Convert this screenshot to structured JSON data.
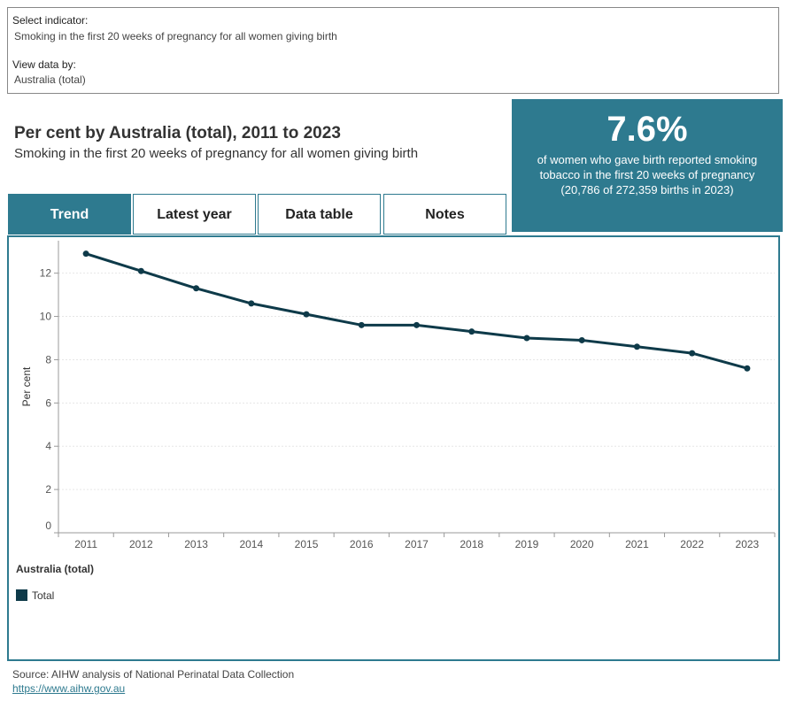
{
  "selector": {
    "indicator_label": "Select indicator:",
    "indicator_value": "Smoking in the first 20 weeks of pregnancy for all women giving birth",
    "view_label": "View data by:",
    "view_value": "Australia (total)"
  },
  "header": {
    "title": "Per cent by Australia (total), 2011 to 2023",
    "subtitle": "Smoking in the first 20 weeks of pregnancy for all women giving birth"
  },
  "kpi": {
    "value": "7.6%",
    "text": "of women who gave birth reported smoking tobacco in the first 20 weeks of pregnancy (20,786 of 272,359 births in 2023)"
  },
  "tabs": [
    {
      "label": "Trend",
      "active": true
    },
    {
      "label": "Latest year",
      "active": false
    },
    {
      "label": "Data table",
      "active": false
    },
    {
      "label": "Notes",
      "active": false
    }
  ],
  "legend": {
    "title": "Australia (total)",
    "items": [
      {
        "label": "Total",
        "color": "#0e3a49"
      }
    ]
  },
  "footer": {
    "source": "Source: AIHW analysis of National Perinatal Data Collection",
    "link": "https://www.aihw.gov.au"
  },
  "colors": {
    "accent": "#2e7a8f",
    "line": "#0e3a49"
  },
  "chart_data": {
    "type": "line",
    "title": "",
    "xlabel": "",
    "ylabel": "Per cent",
    "categories": [
      "2011",
      "2012",
      "2013",
      "2014",
      "2015",
      "2016",
      "2017",
      "2018",
      "2019",
      "2020",
      "2021",
      "2022",
      "2023"
    ],
    "series": [
      {
        "name": "Total",
        "values": [
          12.9,
          12.1,
          11.3,
          10.6,
          10.1,
          9.6,
          9.6,
          9.3,
          9.0,
          8.9,
          8.6,
          8.3,
          7.6
        ]
      }
    ],
    "ylim": [
      0,
      13.5
    ],
    "yticks": [
      0,
      2,
      4,
      6,
      8,
      10,
      12
    ],
    "grid": true,
    "legend_position": "bottom-left"
  }
}
